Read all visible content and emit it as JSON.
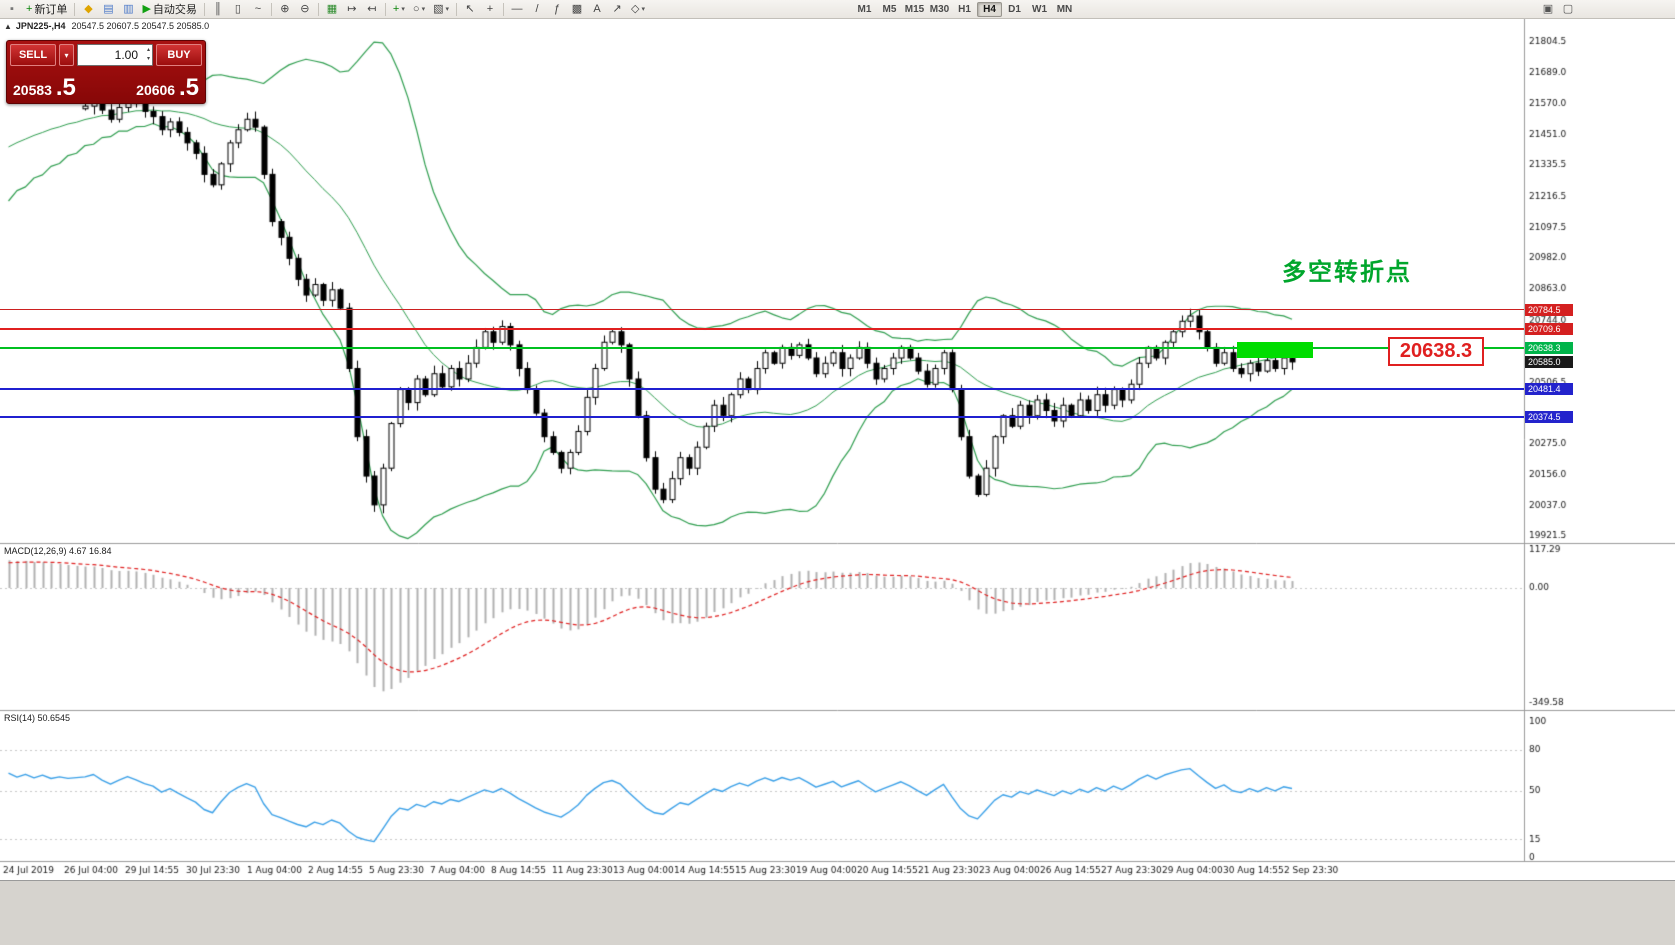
{
  "chart_title": {
    "collapse": "▲",
    "symbol": "JPN225-,H4",
    "ohlc": "20547.5 20607.5 20547.5 20585.0"
  },
  "toolbar": {
    "caret_glyph": "▾",
    "left_items": [
      {
        "name": "app",
        "glyph": "▪",
        "color": "#777"
      },
      {
        "name": "new-order",
        "glyph": "+",
        "label": "新订单",
        "color": "#0a840a"
      },
      {
        "sep": true
      },
      {
        "name": "market-watch",
        "glyph": "◆",
        "color": "#dfa400"
      },
      {
        "name": "data-window",
        "glyph": "▤",
        "color": "#4a78c8"
      },
      {
        "name": "navigator",
        "glyph": "▥",
        "color": "#4a78c8"
      },
      {
        "name": "auto-trading",
        "glyph": "▶",
        "label": "自动交易",
        "color": "#12a012"
      },
      {
        "sep": true
      },
      {
        "name": "bar-chart",
        "glyph": "║",
        "color": "#444"
      },
      {
        "name": "candlestick-chart",
        "glyph": "▯",
        "color": "#444"
      },
      {
        "name": "line-chart",
        "glyph": "~",
        "color": "#444"
      },
      {
        "sep": true
      },
      {
        "name": "zoom-in",
        "glyph": "⊕",
        "color": "#444"
      },
      {
        "name": "zoom-out",
        "glyph": "⊖",
        "color": "#444"
      },
      {
        "sep": true
      },
      {
        "name": "tile-windows",
        "glyph": "▦",
        "color": "#2a8a2a"
      },
      {
        "name": "auto-scroll",
        "glyph": "↦",
        "color": "#444"
      },
      {
        "name": "chart-shift",
        "glyph": "↤",
        "color": "#444"
      },
      {
        "sep": true
      },
      {
        "name": "add-indicator",
        "glyph": "+",
        "caret": true,
        "color": "#0a840a"
      },
      {
        "name": "periods",
        "glyph": "○",
        "caret": true,
        "color": "#444"
      },
      {
        "name": "templates",
        "glyph": "▧",
        "caret": true,
        "color": "#444"
      },
      {
        "sep": true
      },
      {
        "name": "cursor",
        "glyph": "↖",
        "color": "#444"
      },
      {
        "name": "crosshair",
        "glyph": "+",
        "color": "#444"
      },
      {
        "sep": true
      },
      {
        "name": "horizontal-line",
        "glyph": "—",
        "color": "#444"
      },
      {
        "name": "trendline",
        "glyph": "/",
        "color": "#444"
      },
      {
        "name": "fibonacci",
        "glyph": "ƒ",
        "color": "#444"
      },
      {
        "name": "objects-grid",
        "glyph": "▩",
        "color": "#444"
      },
      {
        "name": "text-label",
        "glyph": "A",
        "color": "#444"
      },
      {
        "name": "arrow-tool",
        "glyph": "↗",
        "color": "#444"
      },
      {
        "name": "shapes",
        "glyph": "◇",
        "caret": true,
        "color": "#444"
      }
    ],
    "timeframes": [
      "M1",
      "M5",
      "M15",
      "M30",
      "H1",
      "H4",
      "D1",
      "W1",
      "MN"
    ],
    "active_timeframe": "H4",
    "right_items": [
      {
        "name": "window-a",
        "glyph": "▣",
        "color": "#555"
      },
      {
        "name": "window-b",
        "glyph": "▢",
        "color": "#555"
      }
    ]
  },
  "trade_panel": {
    "sell_label": "SELL",
    "buy_label": "BUY",
    "dropdown_glyph": "▾",
    "volume": "1.00",
    "spin_up": "▴",
    "spin_down": "▾",
    "sell_price_main": "20583",
    "sell_price_frac": ".5",
    "buy_price_main": "20606",
    "buy_price_frac": ".5"
  },
  "indicators": {
    "macd_label": "MACD(12,26,9) 4.67 16.84",
    "rsi_label": "RSI(14) 50.6545"
  },
  "annotations": {
    "turning_point": {
      "text": "多空转折点",
      "color": "#00a62c"
    },
    "callout": {
      "text": "20638.3",
      "color": "#e02020"
    },
    "highlight_rect": {
      "index_start": 135.5,
      "index_end": 144.5,
      "price_top": 20661,
      "price_bottom": 20600,
      "color": "#00dd00"
    }
  },
  "price_tags": [
    {
      "label": "20784.5",
      "price": 20784.5,
      "bg": "#d42020"
    },
    {
      "label": "20709.6",
      "price": 20709.6,
      "bg": "#d42020"
    },
    {
      "label": "20638.3",
      "price": 20638.3,
      "bg": "#00b44a"
    },
    {
      "label": "20585.0",
      "price": 20585.0,
      "bg": "#1a1a1a"
    },
    {
      "label": "20481.4",
      "price": 20481.4,
      "bg": "#2323cc"
    },
    {
      "label": "20374.5",
      "price": 20374.5,
      "bg": "#2323cc"
    }
  ],
  "chart_data": {
    "type": "candlestick",
    "symbol": "JPN225-",
    "timeframe": "H4",
    "price_range": [
      19921.5,
      21804.5
    ],
    "price_axis_labels": [
      "21804.5",
      "21689.0",
      "21570.0",
      "21451.0",
      "21335.5",
      "21216.5",
      "21097.5",
      "20982.0",
      "20863.0",
      "20744.0",
      "20506.5",
      "20275.0",
      "20156.0",
      "20037.0",
      "19921.5"
    ],
    "time_labels": [
      "24 Jul 2019",
      "26 Jul 04:00",
      "29 Jul 14:55",
      "30 Jul 23:30",
      "1 Aug 04:00",
      "2 Aug 14:55",
      "5 Aug 23:30",
      "7 Aug 04:00",
      "8 Aug 14:55",
      "11 Aug 23:30",
      "13 Aug 04:00",
      "14 Aug 14:55",
      "15 Aug 23:30",
      "19 Aug 04:00",
      "20 Aug 14:55",
      "21 Aug 23:30",
      "23 Aug 04:00",
      "26 Aug 14:55",
      "27 Aug 23:30",
      "29 Aug 04:00",
      "30 Aug 14:55",
      "2 Sep 23:30"
    ],
    "preroll_closes": [
      21150,
      21230,
      21180,
      21290,
      21240,
      21340,
      21280,
      21380,
      21320,
      21420,
      21350,
      21450,
      21390,
      21480,
      21420,
      21510,
      21450,
      21530,
      21470,
      21545,
      21490,
      21555,
      21510,
      21560,
      21520,
      21565,
      21530,
      21555,
      21540,
      21550
    ],
    "closes": [
      21560,
      21590,
      21545,
      21510,
      21555,
      21595,
      21570,
      21540,
      21520,
      21470,
      21500,
      21460,
      21420,
      21380,
      21300,
      21260,
      21340,
      21420,
      21470,
      21510,
      21480,
      21300,
      21120,
      21060,
      20980,
      20900,
      20840,
      20880,
      20820,
      20860,
      20790,
      20560,
      20300,
      20150,
      20040,
      20180,
      20350,
      20480,
      20430,
      20520,
      20460,
      20540,
      20490,
      20560,
      20520,
      20580,
      20640,
      20700,
      20660,
      20720,
      20650,
      20560,
      20480,
      20390,
      20300,
      20240,
      20180,
      20240,
      20320,
      20450,
      20560,
      20660,
      20700,
      20650,
      20520,
      20380,
      20220,
      20100,
      20060,
      20140,
      20220,
      20180,
      20260,
      20340,
      20420,
      20380,
      20460,
      20520,
      20480,
      20560,
      20620,
      20580,
      20640,
      20610,
      20650,
      20600,
      20540,
      20580,
      20620,
      20560,
      20600,
      20640,
      20580,
      20520,
      20560,
      20600,
      20640,
      20600,
      20550,
      20500,
      20560,
      20620,
      20480,
      20300,
      20150,
      20080,
      20180,
      20300,
      20380,
      20340,
      20420,
      20380,
      20440,
      20400,
      20360,
      20420,
      20380,
      20440,
      20400,
      20460,
      20420,
      20480,
      20440,
      20500,
      20580,
      20640,
      20600,
      20660,
      20700,
      20740,
      20760,
      20700,
      20640,
      20580,
      20620,
      20560,
      20540,
      20580,
      20550,
      20590,
      20560,
      20600,
      20585
    ],
    "bollinger": {
      "period": 20,
      "deviation": 2,
      "color": "#2f9e4f"
    },
    "horizontal_lines": [
      {
        "price": 20784.5,
        "color": "#cc2020",
        "width": 1
      },
      {
        "price": 20709.6,
        "color": "#e02020",
        "width": 2
      },
      {
        "price": 20638.3,
        "color": "#00c020",
        "width": 2
      },
      {
        "price": 20481.4,
        "color": "#2020d0",
        "width": 2
      },
      {
        "price": 20374.5,
        "color": "#2020d0",
        "width": 2
      }
    ],
    "current_price": 20585.0,
    "macd": {
      "fast": 12,
      "slow": 26,
      "signal": 9,
      "current_main": 4.67,
      "current_signal": 16.84,
      "scale_labels": [
        "117.29",
        "0.00",
        "-349.58"
      ],
      "scale_values": [
        117.29,
        0,
        -349.58
      ],
      "histogram_color": "#b2b2b2",
      "signal_color": "#e02020"
    },
    "rsi": {
      "period": 14,
      "current": 50.6545,
      "scale_labels": [
        "100",
        "80",
        "50",
        "15",
        "0"
      ],
      "scale_values": [
        100,
        80,
        50,
        15,
        0
      ],
      "levels": [
        80,
        50,
        15
      ],
      "line_color": "#3aa0e8"
    }
  }
}
